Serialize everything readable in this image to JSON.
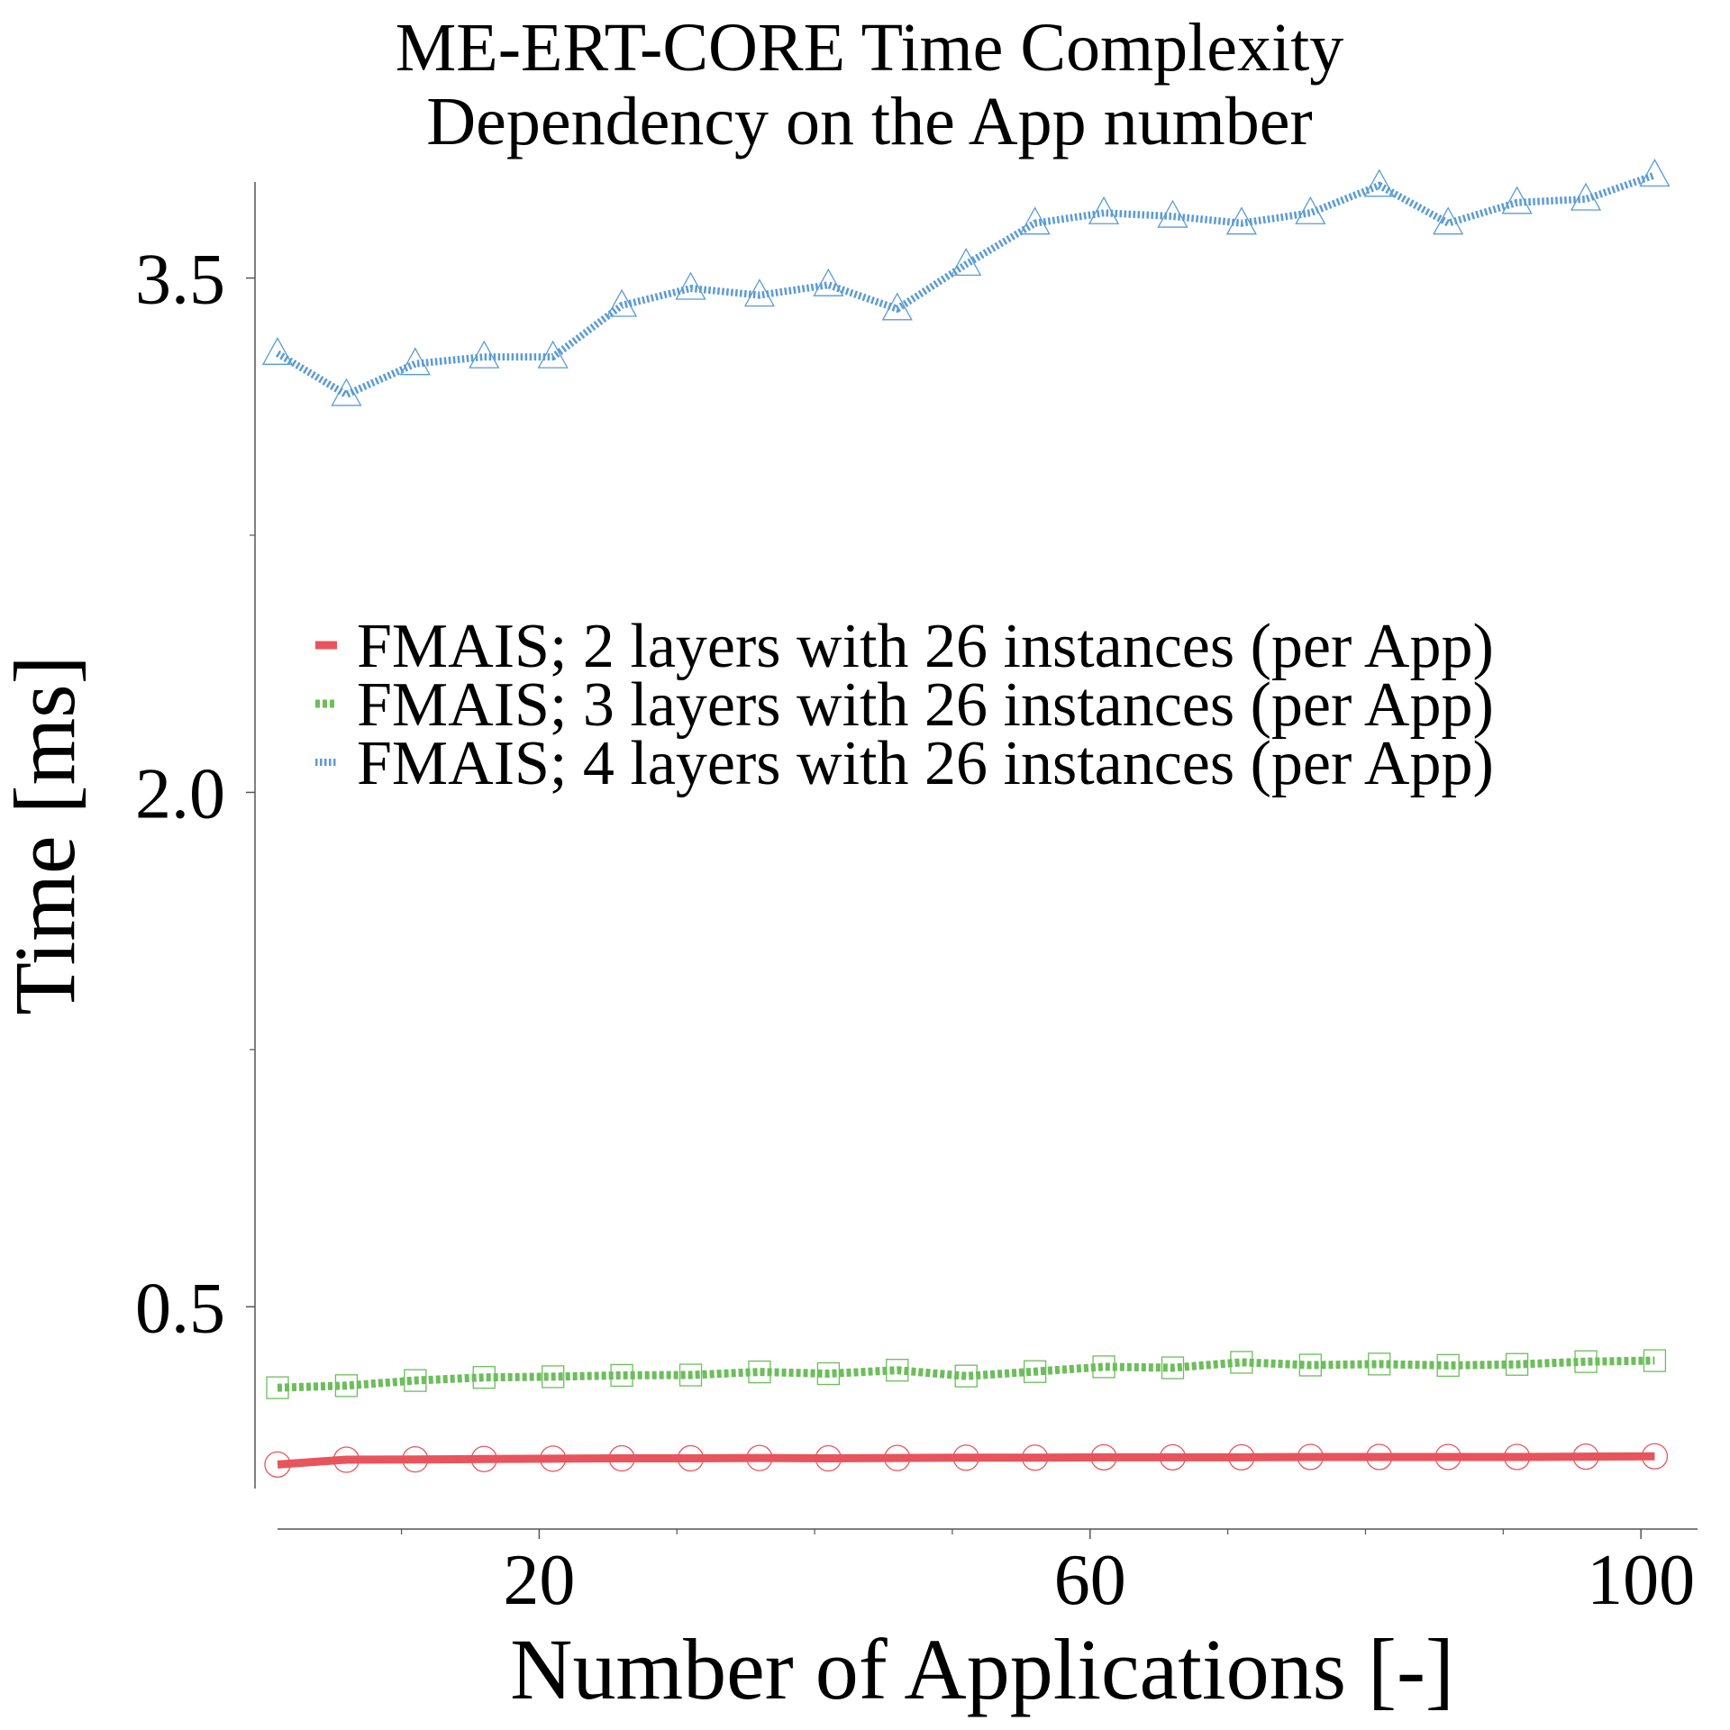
{
  "chart_data": {
    "type": "line",
    "title": [
      "ME-ERT-CORE Time Complexity",
      "Dependency on the App number"
    ],
    "xlabel": "Number of Applications [-]",
    "ylabel": "Time [ms]",
    "xlim": [
      1,
      103
    ],
    "ylim": [
      -0.03,
      3.78
    ],
    "xticks": [
      20,
      60,
      100
    ],
    "xtick_labels": [
      "20",
      "60",
      "100"
    ],
    "xminor": [
      10,
      30,
      40,
      50,
      70,
      80,
      90
    ],
    "yticks": [
      0.5,
      2.0,
      3.5
    ],
    "ytick_labels": [
      "0.5",
      "2.0",
      "3.5"
    ],
    "yminor": [
      1.25,
      2.75
    ],
    "grid": false,
    "legend_position": "center",
    "x": [
      1,
      6,
      11,
      16,
      21,
      26,
      31,
      36,
      41,
      46,
      51,
      56,
      61,
      66,
      71,
      76,
      81,
      86,
      91,
      96,
      101
    ],
    "series": [
      {
        "name": "FMAIS; 2 layers with 26 instances (per App)",
        "color": "#e8545c",
        "marker": "circle",
        "line_style": "solid",
        "values": [
          0.04,
          0.054,
          0.055,
          0.056,
          0.057,
          0.058,
          0.058,
          0.059,
          0.058,
          0.059,
          0.06,
          0.06,
          0.061,
          0.061,
          0.061,
          0.062,
          0.062,
          0.062,
          0.062,
          0.063,
          0.064
        ]
      },
      {
        "name": "FMAIS; 3 layers with 26 instances (per App)",
        "color": "#6cbe5a",
        "marker": "square",
        "line_style": "dotted",
        "values": [
          0.264,
          0.27,
          0.285,
          0.294,
          0.296,
          0.3,
          0.301,
          0.31,
          0.305,
          0.315,
          0.298,
          0.311,
          0.325,
          0.322,
          0.338,
          0.33,
          0.333,
          0.329,
          0.332,
          0.34,
          0.343
        ]
      },
      {
        "name": "FMAIS; 4 layers with 26 instances (per App)",
        "color": "#5b9bd5",
        "marker": "triangle",
        "line_style": "dotted",
        "values": [
          3.28,
          3.16,
          3.25,
          3.27,
          3.27,
          3.42,
          3.47,
          3.45,
          3.48,
          3.41,
          3.54,
          3.66,
          3.69,
          3.68,
          3.66,
          3.69,
          3.77,
          3.66,
          3.72,
          3.73,
          3.8
        ]
      }
    ]
  }
}
